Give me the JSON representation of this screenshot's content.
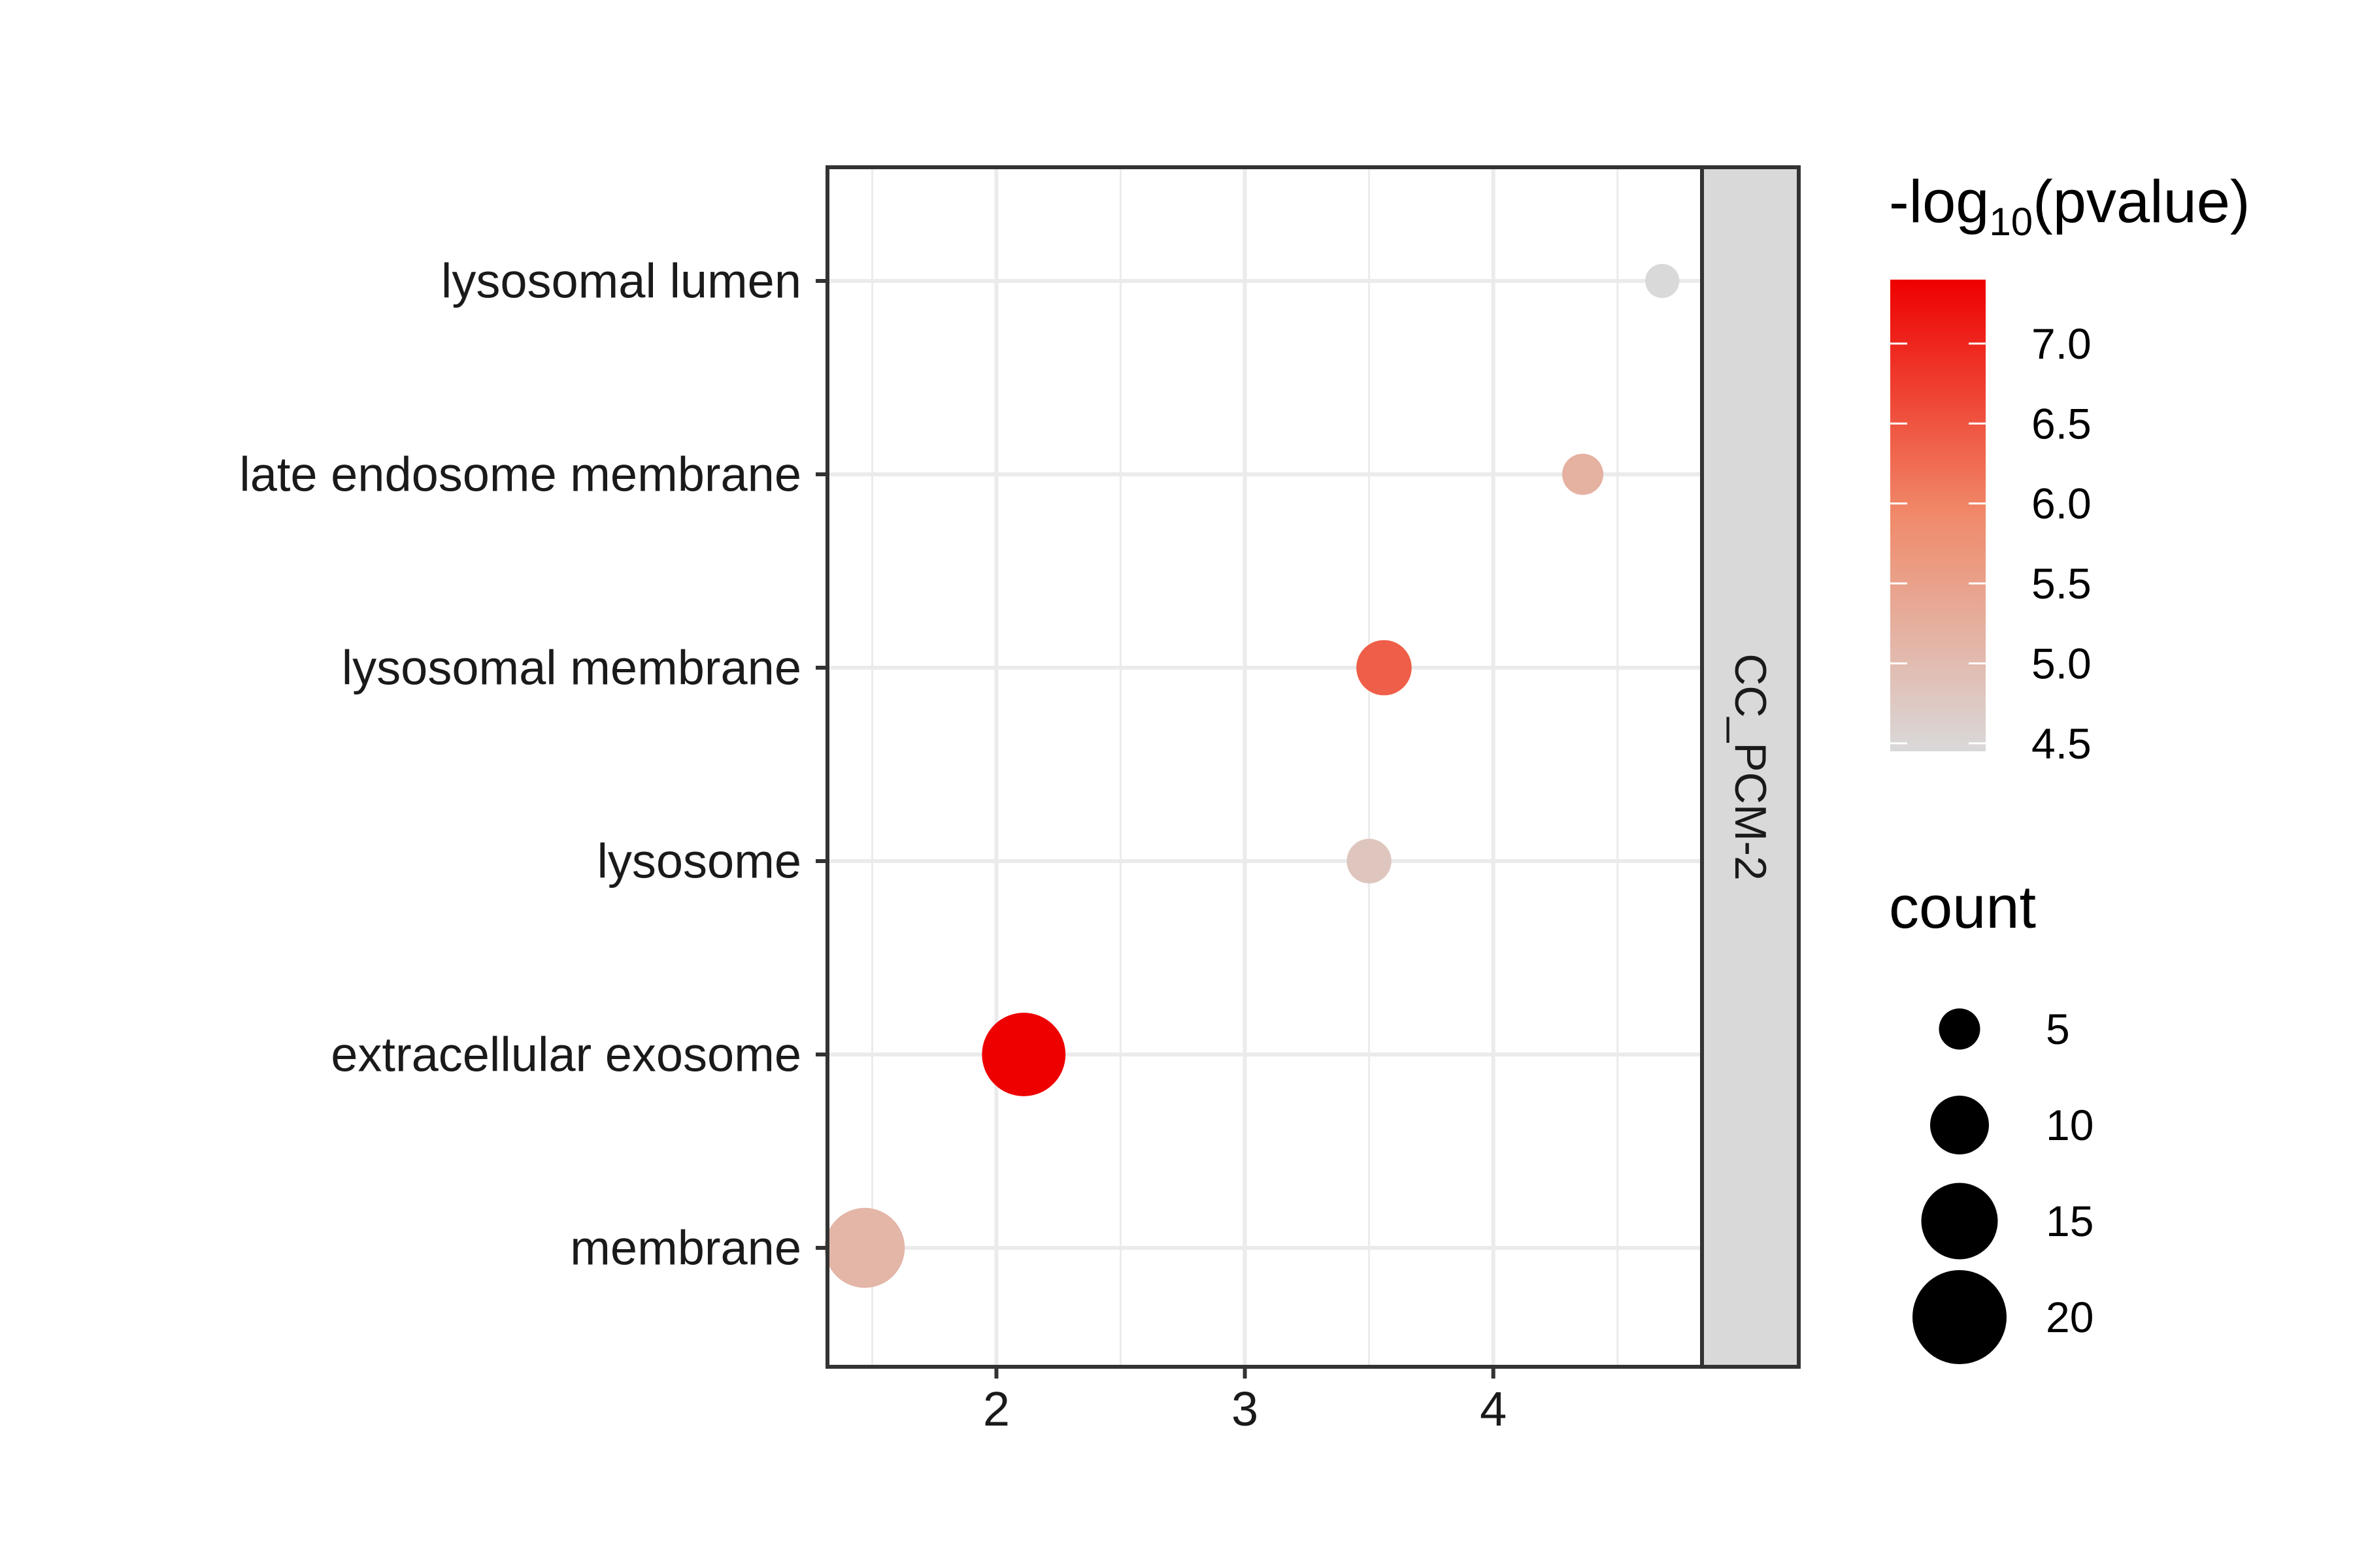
{
  "chart_data": {
    "type": "scatter",
    "facet_label": "CC_PCM-2",
    "xlim": [
      1.32,
      4.84
    ],
    "x_ticks": [
      2,
      3,
      4
    ],
    "x_minor": [
      1.5,
      2.5,
      3.5,
      4.5
    ],
    "categories": [
      "lysosomal lumen",
      "late endosome membrane",
      "lysosomal membrane",
      "lysosome",
      "extracellular exosome",
      "membrane"
    ],
    "points": [
      {
        "term": "lysosomal lumen",
        "x": 4.68,
        "count": 3,
        "neglog10p": 4.45
      },
      {
        "term": "late endosome membrane",
        "x": 4.36,
        "count": 5,
        "neglog10p": 5.2
      },
      {
        "term": "lysosomal membrane",
        "x": 3.56,
        "count": 9,
        "neglog10p": 6.4
      },
      {
        "term": "lysosome",
        "x": 3.5,
        "count": 6,
        "neglog10p": 4.8
      },
      {
        "term": "extracellular exosome",
        "x": 2.11,
        "count": 17,
        "neglog10p": 7.4
      },
      {
        "term": "membrane",
        "x": 1.47,
        "count": 16,
        "neglog10p": 5.1
      }
    ],
    "color_legend": {
      "title_main": "-log",
      "title_sub": "10",
      "title_tail": "(pvalue)",
      "range": [
        4.45,
        7.4
      ],
      "ticks": [
        "7.0",
        "6.5",
        "6.0",
        "5.5",
        "5.0",
        "4.5"
      ],
      "tick_values": [
        7.0,
        6.5,
        6.0,
        5.5,
        5.0,
        4.5
      ],
      "low_color": "#d9d9d9",
      "high_color": "#ee0000"
    },
    "size_legend": {
      "title": "count",
      "entries": [
        {
          "label": "5",
          "value": 5
        },
        {
          "label": "10",
          "value": 10
        },
        {
          "label": "15",
          "value": 15
        },
        {
          "label": "20",
          "value": 20
        }
      ]
    },
    "grid": true,
    "legend_position": "right"
  }
}
